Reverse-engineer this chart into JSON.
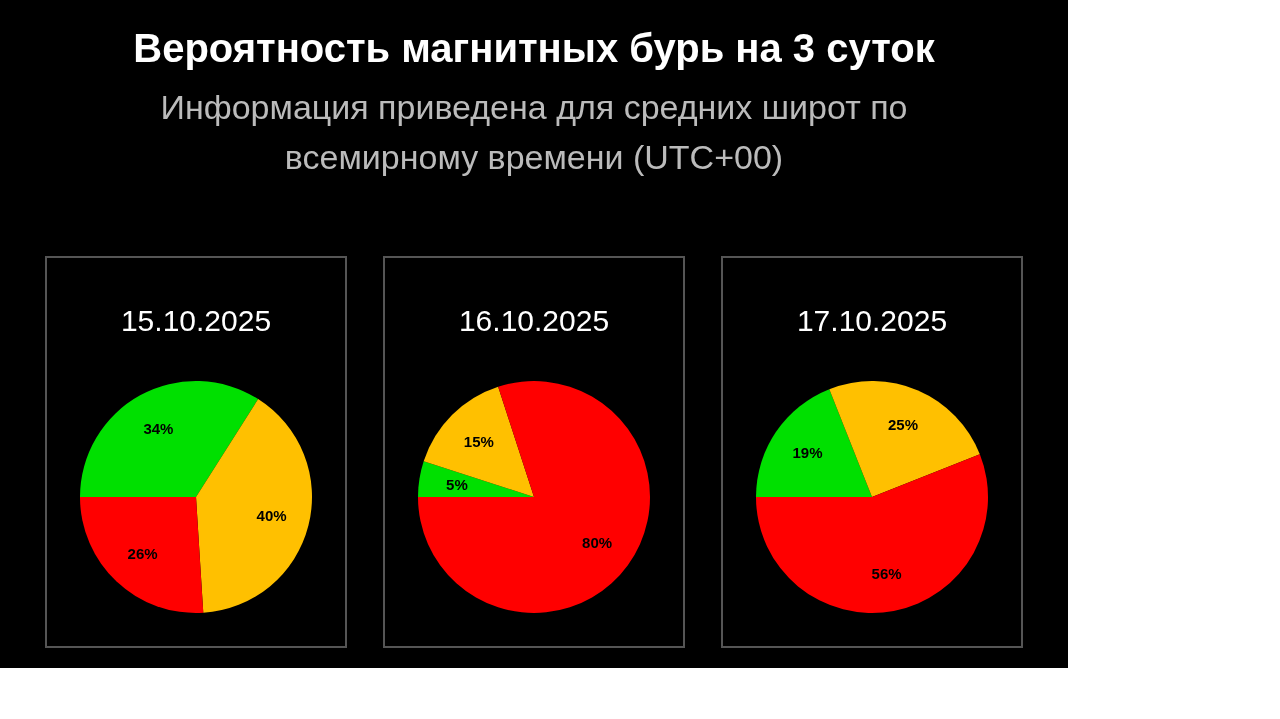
{
  "chart_data": [
    {
      "type": "other",
      "title": "Вероятность магнитных бурь на 3 суток",
      "subtitle": "Информация приведена для средних широт по всемирному времени (UTC+00)"
    },
    {
      "type": "pie",
      "title": "15.10.2025",
      "categories": [
        null,
        null,
        null
      ],
      "values": [
        34,
        40,
        26
      ],
      "colors": [
        "#00e000",
        "#ffc000",
        "#ff0000"
      ],
      "value_labels": [
        "34%",
        "40%",
        "26%"
      ]
    },
    {
      "type": "pie",
      "title": "16.10.2025",
      "categories": [
        null,
        null,
        null
      ],
      "values": [
        5,
        15,
        80
      ],
      "colors": [
        "#00e000",
        "#ffc000",
        "#ff0000"
      ],
      "value_labels": [
        "5%",
        "15%",
        "80%"
      ]
    },
    {
      "type": "pie",
      "title": "17.10.2025",
      "categories": [
        null,
        null,
        null
      ],
      "values": [
        19,
        25,
        56
      ],
      "colors": [
        "#00e000",
        "#ffc000",
        "#ff0000"
      ],
      "value_labels": [
        "19%",
        "25%",
        "56%"
      ]
    }
  ]
}
